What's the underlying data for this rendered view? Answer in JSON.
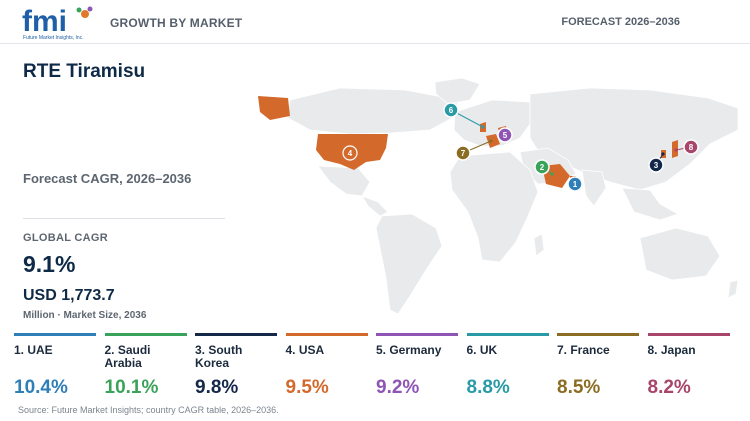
{
  "header": {
    "logo_text": "fmi",
    "logo_tagline": "Future Market Insights, Inc.",
    "section": "GROWTH BY MARKET",
    "forecast": "FORECAST 2026–2036"
  },
  "title": "RTE Tiramisu",
  "subtitle": "Forecast CAGR, 2026–2036",
  "global": {
    "label": "GLOBAL CAGR",
    "cagr": "9.1%",
    "market_size": "USD 1,773.7",
    "market_caption": "Million · Market Size, 2036"
  },
  "source": "Source: Future Market Insights; country CAGR table, 2026–2036.",
  "colors": {
    "map_land": "#e8eaec",
    "highlight": "#d4692c",
    "title": "#0f2a47"
  },
  "chart_data": {
    "type": "table",
    "title": "RTE Tiramisu",
    "subtitle": "Forecast CAGR, 2026–2036",
    "rows": [
      {
        "rank": 1,
        "label": "1. UAE",
        "cagr": 10.4,
        "display": "10.4%",
        "color": "#2e7fb8"
      },
      {
        "rank": 2,
        "label": "2. Saudi Arabia",
        "cagr": 10.1,
        "display": "10.1%",
        "color": "#3aa35b"
      },
      {
        "rank": 3,
        "label": "3. South Korea",
        "cagr": 9.8,
        "display": "9.8%",
        "color": "#14284a"
      },
      {
        "rank": 4,
        "label": "4. USA",
        "cagr": 9.5,
        "display": "9.5%",
        "color": "#d4692c"
      },
      {
        "rank": 5,
        "label": "5. Germany",
        "cagr": 9.2,
        "display": "9.2%",
        "color": "#8e55b5"
      },
      {
        "rank": 6,
        "label": "6. UK",
        "cagr": 8.8,
        "display": "8.8%",
        "color": "#2a9ba6"
      },
      {
        "rank": 7,
        "label": "7. France",
        "cagr": 8.5,
        "display": "8.5%",
        "color": "#8a6d22"
      },
      {
        "rank": 8,
        "label": "8. Japan",
        "cagr": 8.2,
        "display": "8.2%",
        "color": "#a8456a"
      }
    ]
  },
  "map_markers": [
    {
      "rank": 1,
      "label": "1",
      "country": "UAE",
      "color": "#2e7fb8"
    },
    {
      "rank": 2,
      "label": "2",
      "country": "Saudi Arabia",
      "color": "#3aa35b"
    },
    {
      "rank": 3,
      "label": "3",
      "country": "South Korea",
      "color": "#14284a"
    },
    {
      "rank": 4,
      "label": "4",
      "country": "USA",
      "color": "#d4692c"
    },
    {
      "rank": 5,
      "label": "5",
      "country": "Germany",
      "color": "#8e55b5"
    },
    {
      "rank": 6,
      "label": "6",
      "country": "UK",
      "color": "#2a9ba6"
    },
    {
      "rank": 7,
      "label": "7",
      "country": "France",
      "color": "#8a6d22"
    },
    {
      "rank": 8,
      "label": "8",
      "country": "Japan",
      "color": "#a8456a"
    }
  ]
}
